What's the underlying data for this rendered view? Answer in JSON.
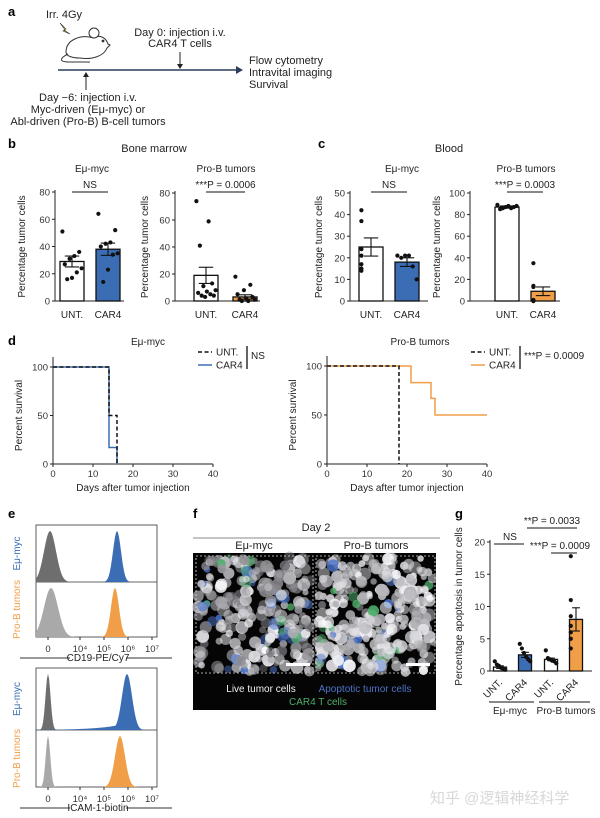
{
  "panel_labels": {
    "a": "a",
    "b": "b",
    "c": "c",
    "d": "d",
    "e": "e",
    "f": "f",
    "g": "g"
  },
  "schematic": {
    "irradiation": "Irr. 4Gy",
    "day0_line1": "Day 0: injection i.v.",
    "day0_line2": "CAR4 T cells",
    "readout1": "Flow cytometry",
    "readout2": "Intravital imaging",
    "readout3": "Survival",
    "dayminus6_line1": "Day −6: injection i.v.",
    "dayminus6_line2": "Myc-driven (Eμ-myc) or",
    "dayminus6_line3": "Abl-driven (Pro-B) B-cell tumors"
  },
  "section_titles": {
    "b": "Bone marrow",
    "c": "Blood"
  },
  "colors": {
    "blue": "#3b6db4",
    "orange": "#f19e48",
    "dark_gray": "#6e6e6e",
    "light_gray": "#a9a9a9",
    "black": "#111111"
  },
  "chart_data": [
    {
      "id": "b_emu",
      "type": "bar",
      "title": "Eμ-myc",
      "ylabel": "Percentage tumor cells",
      "ylim": [
        0,
        80
      ],
      "yticks": [
        "0",
        "20",
        "40",
        "60",
        "80"
      ],
      "categories": [
        "UNT.",
        "CAR4"
      ],
      "means": [
        29,
        38
      ],
      "sem": [
        4,
        4.5
      ],
      "fills": [
        "#ffffff",
        "#3b6db4"
      ],
      "points": [
        [
          51,
          36,
          33,
          31,
          27,
          24,
          21,
          17,
          16
        ],
        [
          64,
          52,
          43,
          42,
          40,
          35,
          34,
          23,
          14
        ]
      ],
      "significance": "NS"
    },
    {
      "id": "b_prob",
      "type": "bar",
      "title": "Pro-B tumors",
      "ylabel": "Percentage tumor cells",
      "ylim": [
        0,
        80
      ],
      "yticks": [
        "0",
        "20",
        "40",
        "60",
        "80"
      ],
      "categories": [
        "UNT.",
        "CAR4"
      ],
      "means": [
        19,
        3
      ],
      "sem": [
        6,
        1.6
      ],
      "fills": [
        "#ffffff",
        "#f19e48"
      ],
      "points": [
        [
          74,
          59,
          41,
          13,
          11,
          8,
          7,
          6,
          5,
          4,
          4,
          3
        ],
        [
          18,
          12,
          8,
          5,
          3,
          2,
          1,
          1,
          0,
          0
        ]
      ],
      "significance": "***P = 0.0006"
    },
    {
      "id": "c_emu",
      "type": "bar",
      "title": "Eμ-myc",
      "ylabel": "Percentage tumor cells",
      "ylim": [
        0,
        50
      ],
      "yticks": [
        "0",
        "10",
        "20",
        "30",
        "40",
        "50"
      ],
      "categories": [
        "UNT.",
        "CAR4"
      ],
      "means": [
        25,
        18
      ],
      "sem": [
        4.2,
        2
      ],
      "fills": [
        "#ffffff",
        "#3b6db4"
      ],
      "points": [
        [
          42,
          37,
          24,
          21,
          17,
          15,
          14
        ],
        [
          21,
          20,
          21,
          21,
          16,
          10
        ]
      ],
      "significance": "NS"
    },
    {
      "id": "c_prob",
      "type": "bar",
      "title": "Pro-B tumors",
      "ylabel": "Percentage tumor cells",
      "ylim": [
        0,
        100
      ],
      "yticks": [
        "0",
        "20",
        "40",
        "60",
        "80",
        "100"
      ],
      "categories": [
        "UNT.",
        "CAR4"
      ],
      "means": [
        87,
        9
      ],
      "sem": [
        1,
        4
      ],
      "fills": [
        "#ffffff",
        "#f19e48"
      ],
      "points": [
        [
          89,
          88,
          87,
          86,
          88,
          87,
          86,
          85
        ],
        [
          35,
          14,
          13,
          1,
          0,
          0,
          0
        ]
      ],
      "significance": "***P = 0.0003"
    },
    {
      "id": "d_emu",
      "type": "line",
      "subtype": "kaplan-meier",
      "title": "Eμ-myc",
      "xlabel": "Days after tumor injection",
      "ylabel": "Percent survival",
      "xlim": [
        0,
        40
      ],
      "ylim": [
        0,
        100
      ],
      "xticks": [
        "0",
        "10",
        "20",
        "30",
        "40"
      ],
      "yticks": [
        "0",
        "50",
        "100"
      ],
      "series": [
        {
          "name": "UNT.",
          "style": "dashed",
          "color": "#111111",
          "steps": [
            [
              0,
              100
            ],
            [
              14,
              50
            ],
            [
              16,
              0
            ]
          ]
        },
        {
          "name": "CAR4",
          "style": "solid",
          "color": "#3b6db4",
          "steps": [
            [
              0,
              100
            ],
            [
              14,
              17
            ],
            [
              16,
              0
            ]
          ]
        }
      ],
      "significance": "NS"
    },
    {
      "id": "d_prob",
      "type": "line",
      "subtype": "kaplan-meier",
      "title": "Pro-B tumors",
      "xlabel": "Days after tumor injection",
      "ylabel": "Percent survival",
      "xlim": [
        0,
        40
      ],
      "ylim": [
        0,
        100
      ],
      "xticks": [
        "0",
        "10",
        "20",
        "30",
        "40"
      ],
      "yticks": [
        "0",
        "50",
        "100"
      ],
      "series": [
        {
          "name": "UNT.",
          "style": "dashed",
          "color": "#111111",
          "steps": [
            [
              0,
              100
            ],
            [
              18,
              0
            ]
          ]
        },
        {
          "name": "CAR4",
          "style": "solid",
          "color": "#f19e48",
          "steps": [
            [
              0,
              100
            ],
            [
              21,
              83
            ],
            [
              26,
              67
            ],
            [
              27,
              50
            ],
            [
              40,
              50
            ]
          ]
        }
      ],
      "significance": "***P = 0.0009"
    },
    {
      "id": "e",
      "type": "area",
      "subtype": "flow-histogram",
      "xticks": [
        "0",
        "10⁴",
        "10⁵",
        "10⁶",
        "10⁷"
      ],
      "panels": [
        {
          "xlabel": "CD19-PE/Cy7",
          "rows": [
            {
              "label": "Eμ-myc",
              "label_color": "#3b6db4",
              "negative": {
                "peak": "~0",
                "color": "#6e6e6e"
              },
              "positive": {
                "peak": "3×10⁵",
                "color": "#3b6db4"
              }
            },
            {
              "label": "Pro-B tumors",
              "label_color": "#f19e48",
              "negative": {
                "peak": "~0",
                "color": "#a9a9a9"
              },
              "positive": {
                "peak": "2.5×10⁵",
                "color": "#f19e48"
              }
            }
          ]
        },
        {
          "xlabel": "ICAM-1-biotin",
          "rows": [
            {
              "label": "Eμ-myc",
              "label_color": "#3b6db4",
              "negative": {
                "peak": "0",
                "color": "#6e6e6e"
              },
              "positive": {
                "peak": "1×10⁶",
                "color": "#3b6db4"
              }
            },
            {
              "label": "Pro-B tumors",
              "label_color": "#f19e48",
              "negative": {
                "peak": "0",
                "color": "#a9a9a9"
              },
              "positive": {
                "peak": "5×10⁵",
                "color": "#f19e48"
              }
            }
          ]
        }
      ]
    },
    {
      "id": "g",
      "type": "bar",
      "ylabel": "Percentage apoptosis in tumor cells",
      "ylim": [
        0,
        20
      ],
      "yticks": [
        "0",
        "5",
        "10",
        "15",
        "20"
      ],
      "categories": [
        "UNT.",
        "CAR4",
        "UNT.",
        "CAR4"
      ],
      "groups": [
        "Eμ-myc",
        "Pro-B tumors"
      ],
      "means": [
        0.6,
        2.5,
        1.8,
        8
      ],
      "sem": [
        0.2,
        0.4,
        0.2,
        1.8
      ],
      "fills": [
        "#ffffff",
        "#3b6db4",
        "#ffffff",
        "#f19e48"
      ],
      "points": [
        [
          1.5,
          1.0,
          0.8,
          0.5,
          0.3,
          0.2
        ],
        [
          4.2,
          3.5,
          2.8,
          2.2,
          1.8,
          1.5
        ],
        [
          3.2,
          2.0,
          1.8,
          1.6,
          1.5,
          1.2
        ],
        [
          17.8,
          11,
          8.5,
          7,
          6,
          5,
          3.5
        ]
      ],
      "significance": [
        "NS",
        "**P = 0.0033",
        "***P = 0.0009"
      ]
    }
  ],
  "imaging": {
    "title": "Day 2",
    "left_label": "Eμ-myc",
    "right_label": "Pro-B tumors",
    "legend_live": "Live tumor cells",
    "legend_apoptotic": "Apoptotic tumor cells",
    "legend_car4": "CAR4 T cells",
    "legend_colors": {
      "live": "#f2f2f2",
      "apoptotic": "#4d74c9",
      "car4": "#4fae6a"
    }
  },
  "watermark": "知乎 @逻辑神经科学"
}
